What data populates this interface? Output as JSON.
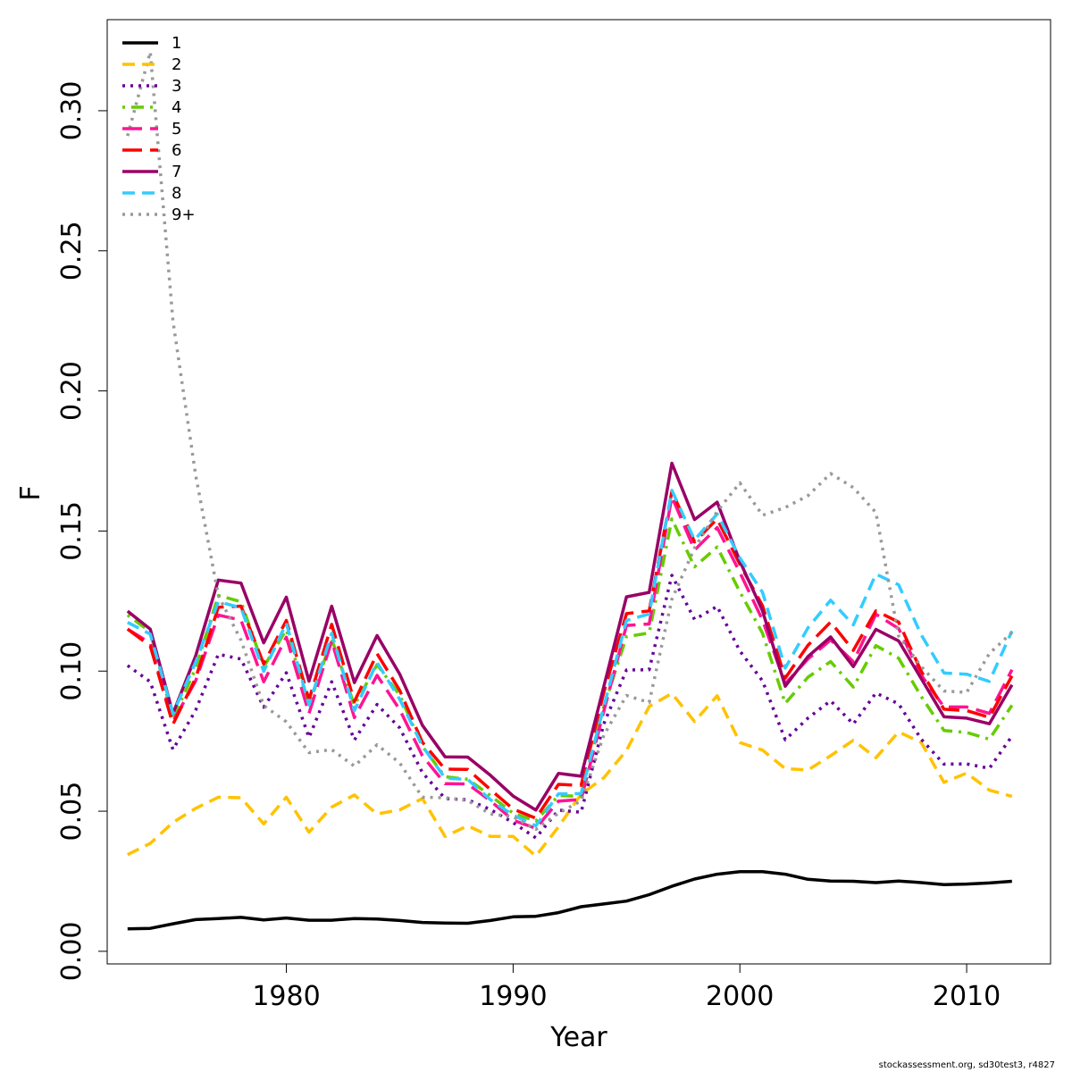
{
  "chart_data": {
    "type": "line",
    "xlabel": "Year",
    "ylabel": "F",
    "xlim": [
      1972.1,
      2013.7
    ],
    "ylim": [
      -0.0045,
      0.3325
    ],
    "xticks": [
      1980,
      1990,
      2000,
      2010
    ],
    "xtick_labels": [
      "1980",
      "1990",
      "2000",
      "2010"
    ],
    "yticks": [
      0.0,
      0.05,
      0.1,
      0.15,
      0.2,
      0.25,
      0.3
    ],
    "ytick_labels": [
      "0.00",
      "0.05",
      "0.10",
      "0.15",
      "0.20",
      "0.25",
      "0.30"
    ],
    "legend_position": "top-left",
    "grid": false,
    "footer": "stockassessment.org, sd30test3, r4827",
    "x": [
      1973,
      1974,
      1975,
      1976,
      1977,
      1978,
      1979,
      1980,
      1981,
      1982,
      1983,
      1984,
      1985,
      1986,
      1987,
      1988,
      1989,
      1990,
      1991,
      1992,
      1993,
      1994,
      1995,
      1996,
      1997,
      1998,
      1999,
      2000,
      2001,
      2002,
      2003,
      2004,
      2005,
      2006,
      2007,
      2008,
      2009,
      2010,
      2011,
      2012
    ],
    "series": [
      {
        "name": "1",
        "color": "#000000",
        "dash": "solid",
        "values": [
          0.008,
          0.0082,
          0.0098,
          0.0113,
          0.0117,
          0.0121,
          0.0112,
          0.0119,
          0.0111,
          0.0111,
          0.0117,
          0.0115,
          0.011,
          0.0103,
          0.0101,
          0.01,
          0.011,
          0.0123,
          0.0125,
          0.0138,
          0.0159,
          0.0169,
          0.0179,
          0.0202,
          0.0232,
          0.0258,
          0.0275,
          0.0284,
          0.0284,
          0.0275,
          0.0257,
          0.0251,
          0.025,
          0.0245,
          0.0251,
          0.0245,
          0.0238,
          0.024,
          0.0244,
          0.025
        ]
      },
      {
        "name": "2",
        "color": "#FFC200",
        "dash": "dashed",
        "values": [
          0.0345,
          0.0385,
          0.046,
          0.051,
          0.055,
          0.0548,
          0.0455,
          0.055,
          0.0425,
          0.0515,
          0.0558,
          0.049,
          0.0505,
          0.0545,
          0.041,
          0.0448,
          0.041,
          0.041,
          0.034,
          0.0444,
          0.0561,
          0.0619,
          0.0717,
          0.0874,
          0.092,
          0.082,
          0.0912,
          0.0745,
          0.0718,
          0.0652,
          0.0647,
          0.0698,
          0.0753,
          0.0691,
          0.0783,
          0.0745,
          0.0603,
          0.0636,
          0.0575,
          0.0553
        ]
      },
      {
        "name": "3",
        "color": "#660099",
        "dash": "dotted",
        "values": [
          0.102,
          0.0962,
          0.072,
          0.086,
          0.106,
          0.1043,
          0.0871,
          0.0994,
          0.0763,
          0.0962,
          0.0754,
          0.0881,
          0.0797,
          0.0638,
          0.0545,
          0.0541,
          0.0506,
          0.0459,
          0.0405,
          0.0504,
          0.0496,
          0.0812,
          0.1004,
          0.1005,
          0.1342,
          0.1184,
          0.1231,
          0.1072,
          0.0965,
          0.0755,
          0.0832,
          0.0894,
          0.0811,
          0.0922,
          0.0883,
          0.0757,
          0.0668,
          0.0669,
          0.0653,
          0.0768
        ]
      },
      {
        "name": "4",
        "color": "#66CC00",
        "dash": "dashdot",
        "values": [
          0.12,
          0.114,
          0.083,
          0.101,
          0.127,
          0.1248,
          0.1015,
          0.1148,
          0.0878,
          0.1114,
          0.0878,
          0.1023,
          0.0914,
          0.0731,
          0.0623,
          0.0614,
          0.0556,
          0.0493,
          0.0465,
          0.0556,
          0.0553,
          0.0872,
          0.1123,
          0.1136,
          0.1543,
          0.1372,
          0.1443,
          0.1283,
          0.1135,
          0.0885,
          0.0978,
          0.1034,
          0.0943,
          0.1091,
          0.1046,
          0.0909,
          0.0788,
          0.0781,
          0.0757,
          0.0878
        ]
      },
      {
        "name": "5",
        "color": "#FF1493",
        "dash": "longdash",
        "values": [
          0.115,
          0.11,
          0.082,
          0.0965,
          0.12,
          0.1182,
          0.0962,
          0.1121,
          0.0849,
          0.1108,
          0.0834,
          0.0985,
          0.0862,
          0.0698,
          0.0598,
          0.0597,
          0.0537,
          0.0468,
          0.0439,
          0.0536,
          0.0542,
          0.0857,
          0.1163,
          0.1168,
          0.1622,
          0.1432,
          0.1512,
          0.1352,
          0.1182,
          0.0955,
          0.1043,
          0.1111,
          0.1034,
          0.1203,
          0.1152,
          0.0985,
          0.0872,
          0.0872,
          0.0849,
          0.1005
        ]
      },
      {
        "name": "6",
        "color": "#FF0000",
        "dash": "longdash",
        "values": [
          0.115,
          0.109,
          0.081,
          0.0975,
          0.1228,
          0.1232,
          0.1026,
          0.1181,
          0.0897,
          0.1167,
          0.0891,
          0.1062,
          0.0931,
          0.0746,
          0.065,
          0.0649,
          0.0577,
          0.0508,
          0.0475,
          0.0596,
          0.0592,
          0.0924,
          0.1205,
          0.1215,
          0.1642,
          0.1461,
          0.1543,
          0.1381,
          0.1233,
          0.0975,
          0.1092,
          0.1175,
          0.1074,
          0.1215,
          0.1175,
          0.0999,
          0.0864,
          0.0859,
          0.0835,
          0.0983
        ]
      },
      {
        "name": "7",
        "color": "#990066",
        "dash": "solid",
        "values": [
          0.1214,
          0.115,
          0.0848,
          0.1054,
          0.1325,
          0.1314,
          0.1101,
          0.1264,
          0.0964,
          0.1232,
          0.0959,
          0.1127,
          0.0989,
          0.0807,
          0.0694,
          0.0693,
          0.0628,
          0.0554,
          0.0504,
          0.0635,
          0.0625,
          0.0945,
          0.1265,
          0.1281,
          0.1742,
          0.1541,
          0.1603,
          0.1392,
          0.1215,
          0.0946,
          0.1052,
          0.1122,
          0.1016,
          0.1149,
          0.1108,
          0.0973,
          0.0837,
          0.0832,
          0.0812,
          0.0951
        ]
      },
      {
        "name": "8",
        "color": "#33CCFF",
        "dash": "dashed",
        "values": [
          0.1174,
          0.1132,
          0.0848,
          0.1032,
          0.1248,
          0.1226,
          0.0999,
          0.1171,
          0.0879,
          0.1135,
          0.0859,
          0.1031,
          0.0899,
          0.0733,
          0.0618,
          0.0613,
          0.0541,
          0.0486,
          0.0448,
          0.0562,
          0.0563,
          0.0873,
          0.1181,
          0.1204,
          0.1645,
          0.1468,
          0.1561,
          0.1404,
          0.1281,
          0.1011,
          0.1154,
          0.1253,
          0.1165,
          0.1346,
          0.1308,
          0.1129,
          0.0993,
          0.0989,
          0.0963,
          0.1143
        ]
      },
      {
        "name": "9+",
        "color": "#999999",
        "dash": "dotted",
        "values": [
          0.291,
          0.321,
          0.225,
          0.17,
          0.127,
          0.111,
          0.0877,
          0.0819,
          0.0709,
          0.072,
          0.0661,
          0.0737,
          0.0672,
          0.055,
          0.0548,
          0.0538,
          0.049,
          0.048,
          0.0435,
          0.0493,
          0.0537,
          0.0771,
          0.0913,
          0.0888,
          0.1256,
          0.1439,
          0.157,
          0.1672,
          0.1556,
          0.1584,
          0.1626,
          0.1705,
          0.1655,
          0.1566,
          0.1125,
          0.1016,
          0.0929,
          0.0924,
          0.1063,
          0.1138
        ]
      }
    ]
  }
}
